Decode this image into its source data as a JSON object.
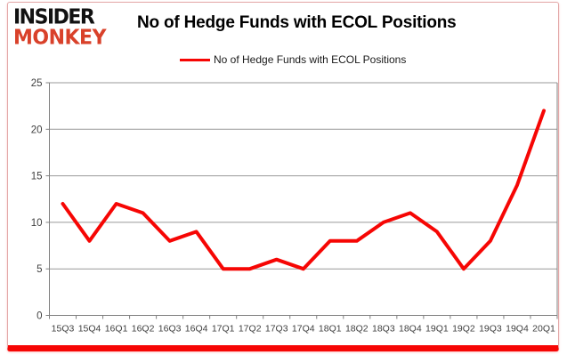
{
  "logo": {
    "line1": "INSIDER",
    "line2": "MONKEY"
  },
  "header": {
    "title": "No of Hedge Funds with ECOL Positions"
  },
  "legend": {
    "label": "No of Hedge Funds with ECOL Positions"
  },
  "colors": {
    "series_line": "#f60604",
    "logo_black": "#111111",
    "logo_red": "#d9412a",
    "grid": "#999999",
    "axis": "#808080",
    "tick_label": "#3f3f3f",
    "card_border": "#e3a8a8",
    "bottom_bar": "#f60604"
  },
  "chart_data": {
    "type": "line",
    "title": "No of Hedge Funds with ECOL Positions",
    "categories": [
      "15Q3",
      "15Q4",
      "16Q1",
      "16Q2",
      "16Q3",
      "16Q4",
      "17Q1",
      "17Q2",
      "17Q3",
      "17Q4",
      "18Q1",
      "18Q2",
      "18Q3",
      "18Q4",
      "19Q1",
      "19Q2",
      "19Q3",
      "19Q4",
      "20Q1"
    ],
    "series": [
      {
        "name": "No of Hedge Funds with ECOL Positions",
        "values": [
          12,
          8,
          12,
          11,
          8,
          9,
          5,
          5,
          6,
          5,
          8,
          8,
          10,
          11,
          9,
          5,
          8,
          14,
          22
        ]
      }
    ],
    "xlabel": "",
    "ylabel": "",
    "ylim": [
      0,
      25
    ],
    "yticks": [
      0,
      5,
      10,
      15,
      20,
      25
    ],
    "grid": true,
    "legend_position": "top-center"
  }
}
